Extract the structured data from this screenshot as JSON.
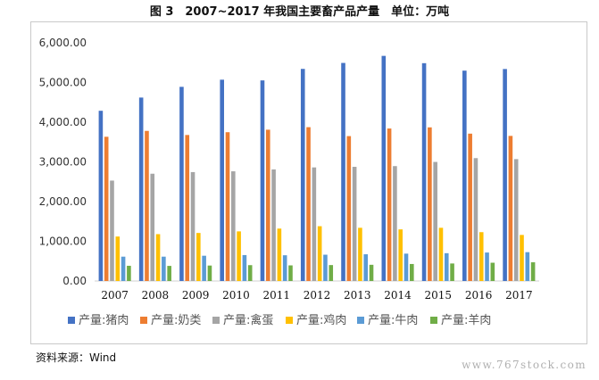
{
  "figure": {
    "title": "图 3　2007~2017 年我国主要畜产品产量　单位：万吨",
    "source": "资料来源：Wind",
    "watermark": "www.767stock.com"
  },
  "chart_data": {
    "type": "bar",
    "title": "图 3　2007~2017 年我国主要畜产品产量　单位：万吨",
    "categories": [
      "2007",
      "2008",
      "2009",
      "2010",
      "2011",
      "2012",
      "2013",
      "2014",
      "2015",
      "2016",
      "2017"
    ],
    "ylim": [
      0,
      6000
    ],
    "yticks": [
      0,
      1000,
      2000,
      3000,
      4000,
      5000,
      6000
    ],
    "ytick_labels": [
      "0.00",
      "1,000.00",
      "2,000.00",
      "3,000.00",
      "4,000.00",
      "5,000.00",
      "6,000.00"
    ],
    "grid": false,
    "legend_position": "bottom",
    "series": [
      {
        "name": "产量:猪肉",
        "color": "#4472C4",
        "values": [
          4288,
          4621,
          4891,
          5071,
          5053,
          5343,
          5493,
          5671,
          5487,
          5299,
          5340
        ]
      },
      {
        "name": "产量:奶类",
        "color": "#ED7D31",
        "values": [
          3633,
          3781,
          3678,
          3748,
          3811,
          3875,
          3650,
          3841,
          3870,
          3712,
          3655
        ]
      },
      {
        "name": "产量:禽蛋",
        "color": "#A5A5A5",
        "values": [
          2529,
          2702,
          2743,
          2763,
          2811,
          2861,
          2876,
          2894,
          2999,
          3095,
          3070
        ]
      },
      {
        "name": "产量:鸡肉",
        "color": "#FFC000",
        "values": [
          1120,
          1180,
          1210,
          1250,
          1320,
          1380,
          1340,
          1300,
          1340,
          1230,
          1160
        ]
      },
      {
        "name": "产量:牛肉",
        "color": "#5B9BD5",
        "values": [
          613,
          613,
          636,
          653,
          648,
          662,
          673,
          689,
          700,
          717,
          726
        ]
      },
      {
        "name": "产量:羊肉",
        "color": "#70AD47",
        "values": [
          383,
          380,
          389,
          399,
          393,
          401,
          408,
          428,
          441,
          460,
          471
        ]
      }
    ]
  }
}
